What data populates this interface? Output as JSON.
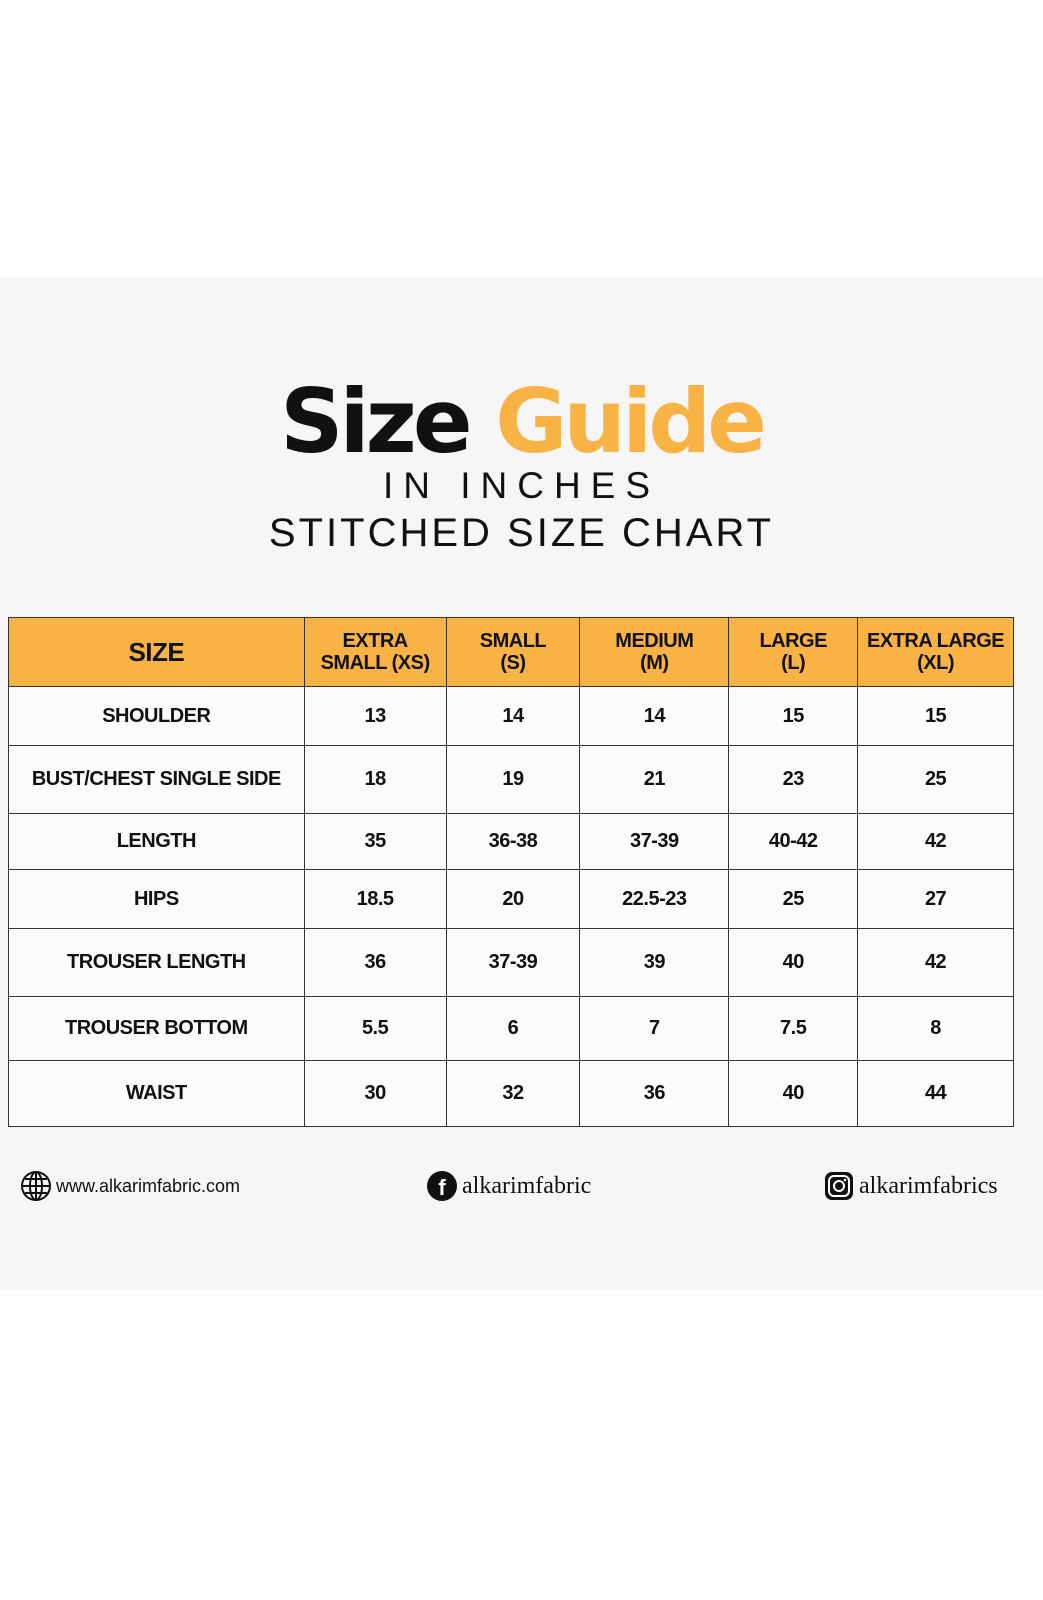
{
  "heading": {
    "title_part1": "Size",
    "title_part2": "Guide",
    "subtitle1": "IN INCHES",
    "subtitle2": "STITCHED SIZE CHART"
  },
  "colors": {
    "accent": "#f9b244",
    "text": "#111111",
    "panel": "#f6f6f8"
  },
  "table": {
    "headers": [
      [
        "SIZE",
        ""
      ],
      [
        "EXTRA",
        "SMALL (XS)"
      ],
      [
        "SMALL",
        "(S)"
      ],
      [
        "MEDIUM",
        "(M)"
      ],
      [
        "LARGE",
        "(L)"
      ],
      [
        "EXTRA LARGE",
        "(XL)"
      ]
    ],
    "rows": [
      [
        "SHOULDER",
        "13",
        "14",
        "14",
        "15",
        "15"
      ],
      [
        "BUST/CHEST SINGLE SIDE",
        "18",
        "19",
        "21",
        "23",
        "25"
      ],
      [
        "LENGTH",
        "35",
        "36-38",
        "37-39",
        "40-42",
        "42"
      ],
      [
        "HIPS",
        "18.5",
        "20",
        "22.5-23",
        "25",
        "27"
      ],
      [
        "TROUSER LENGTH",
        "36",
        "37-39",
        "39",
        "40",
        "42"
      ],
      [
        "TROUSER BOTTOM",
        "5.5",
        "6",
        "7",
        "7.5",
        "8"
      ],
      [
        "WAIST",
        "30",
        "32",
        "36",
        "40",
        "44"
      ]
    ]
  },
  "footer": {
    "website": "www.alkarimfabric.com",
    "website_icon": "globe-icon",
    "facebook": "alkarimfabric",
    "facebook_icon": "facebook-icon",
    "instagram": "alkarimfabrics",
    "instagram_icon": "instagram-icon"
  }
}
